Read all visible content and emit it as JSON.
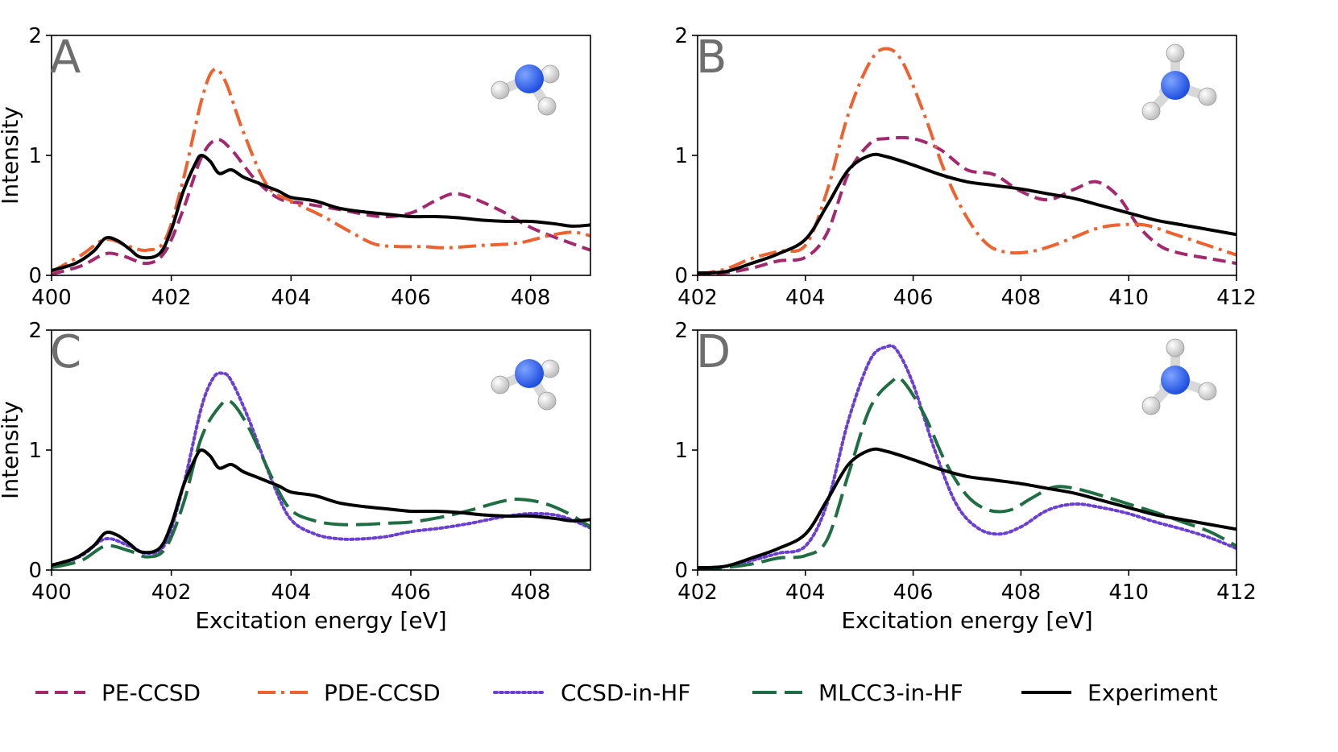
{
  "colors": {
    "PE-CCSD": "#a3286e",
    "PDE-CCSD": "#ee6230",
    "CCSD-in-HF": "#6a3fd1",
    "MLCC3-in-HF": "#1f6e43",
    "Experiment": "#000000",
    "nitrogen": "#1f4fe0",
    "hydrogen": "#f2f2f2"
  },
  "legend": [
    "PE-CCSD",
    "PDE-CCSD",
    "CCSD-in-HF",
    "MLCC3-in-HF",
    "Experiment"
  ],
  "chart_data": [
    {
      "id": "A",
      "type": "line",
      "letter": "A",
      "molecule_icon": "ammonia-molecule-icon",
      "xlim": [
        400,
        409
      ],
      "ylim": [
        0,
        2
      ],
      "xticks": [
        "400",
        "402",
        "404",
        "406",
        "408"
      ],
      "yticks": [
        "0",
        "1",
        "2"
      ],
      "ylabel": "Intensity",
      "xlabel": "",
      "series": [
        {
          "name": "PE-CCSD",
          "x": [
            400,
            400.5,
            400.9,
            401.2,
            401.6,
            401.9,
            402.2,
            402.5,
            402.75,
            403.0,
            403.4,
            403.8,
            404.2,
            404.8,
            405.5,
            406.0,
            406.4,
            406.7,
            407.0,
            407.5,
            408.0,
            408.5,
            409.0
          ],
          "y": [
            0.01,
            0.08,
            0.18,
            0.16,
            0.1,
            0.2,
            0.55,
            0.98,
            1.13,
            1.05,
            0.8,
            0.64,
            0.6,
            0.55,
            0.49,
            0.52,
            0.62,
            0.68,
            0.65,
            0.54,
            0.4,
            0.3,
            0.21
          ]
        },
        {
          "name": "PDE-CCSD",
          "x": [
            400,
            400.5,
            400.9,
            401.3,
            401.6,
            401.9,
            402.2,
            402.5,
            402.7,
            402.9,
            403.2,
            403.6,
            404.0,
            404.5,
            405.0,
            405.4,
            405.8,
            406.2,
            406.6,
            407.2,
            407.8,
            408.3,
            408.7,
            409.0
          ],
          "y": [
            0.03,
            0.17,
            0.3,
            0.24,
            0.21,
            0.3,
            0.8,
            1.45,
            1.71,
            1.62,
            1.2,
            0.75,
            0.62,
            0.5,
            0.36,
            0.26,
            0.24,
            0.24,
            0.23,
            0.25,
            0.27,
            0.33,
            0.36,
            0.33
          ]
        },
        {
          "name": "Experiment",
          "x": [
            400,
            400.4,
            400.7,
            400.9,
            401.1,
            401.3,
            401.5,
            401.8,
            402.0,
            402.2,
            402.4,
            402.5,
            402.65,
            402.8,
            403.0,
            403.2,
            403.4,
            403.6,
            403.8,
            404.0,
            404.4,
            404.8,
            405.2,
            405.6,
            406.0,
            406.4,
            406.8,
            407.2,
            407.6,
            408.0,
            408.4,
            408.7,
            409.0
          ],
          "y": [
            0.04,
            0.1,
            0.2,
            0.31,
            0.29,
            0.22,
            0.15,
            0.18,
            0.38,
            0.7,
            0.93,
            1.0,
            0.95,
            0.85,
            0.88,
            0.82,
            0.78,
            0.74,
            0.7,
            0.65,
            0.62,
            0.56,
            0.53,
            0.51,
            0.49,
            0.49,
            0.48,
            0.46,
            0.45,
            0.45,
            0.43,
            0.41,
            0.42
          ]
        }
      ]
    },
    {
      "id": "B",
      "type": "line",
      "letter": "B",
      "molecule_icon": "ammonium-molecule-icon",
      "xlim": [
        402,
        412
      ],
      "ylim": [
        0,
        2
      ],
      "xticks": [
        "402",
        "404",
        "406",
        "408",
        "410",
        "412"
      ],
      "yticks": [
        "0",
        "1",
        "2"
      ],
      "ylabel": "",
      "xlabel": "",
      "series": [
        {
          "name": "PE-CCSD",
          "x": [
            402,
            402.5,
            403.0,
            403.5,
            404.0,
            404.4,
            404.8,
            405.2,
            405.5,
            406.0,
            406.5,
            407.0,
            407.5,
            408.0,
            408.5,
            409.0,
            409.4,
            409.8,
            410.2,
            410.6,
            411.0,
            411.5,
            412.0
          ],
          "y": [
            0.01,
            0.02,
            0.06,
            0.12,
            0.15,
            0.35,
            0.85,
            1.1,
            1.14,
            1.14,
            1.05,
            0.88,
            0.84,
            0.7,
            0.63,
            0.72,
            0.78,
            0.66,
            0.4,
            0.24,
            0.18,
            0.14,
            0.1
          ]
        },
        {
          "name": "PDE-CCSD",
          "x": [
            402,
            402.5,
            403.0,
            403.5,
            404.0,
            404.4,
            404.8,
            405.2,
            405.5,
            405.8,
            406.2,
            406.6,
            407.0,
            407.4,
            407.8,
            408.2,
            408.6,
            409.0,
            409.4,
            409.8,
            410.3,
            410.8,
            411.4,
            412.0
          ],
          "y": [
            0.01,
            0.05,
            0.14,
            0.2,
            0.25,
            0.7,
            1.35,
            1.78,
            1.89,
            1.78,
            1.35,
            0.85,
            0.48,
            0.25,
            0.19,
            0.2,
            0.25,
            0.32,
            0.39,
            0.42,
            0.42,
            0.35,
            0.26,
            0.17
          ]
        },
        {
          "name": "Experiment",
          "x": [
            402,
            402.5,
            403.0,
            403.5,
            404.0,
            404.4,
            404.8,
            405.2,
            405.5,
            406.0,
            406.5,
            407.0,
            407.5,
            408.0,
            408.5,
            409.0,
            409.5,
            410.0,
            410.5,
            411.0,
            411.5,
            412.0
          ],
          "y": [
            0.02,
            0.03,
            0.1,
            0.18,
            0.3,
            0.58,
            0.88,
            1.0,
            0.99,
            0.92,
            0.84,
            0.78,
            0.75,
            0.72,
            0.68,
            0.64,
            0.58,
            0.52,
            0.46,
            0.42,
            0.38,
            0.34
          ]
        }
      ]
    },
    {
      "id": "C",
      "type": "line",
      "letter": "C",
      "molecule_icon": "ammonia-molecule-icon",
      "xlim": [
        400,
        409
      ],
      "ylim": [
        0,
        2
      ],
      "xticks": [
        "400",
        "402",
        "404",
        "406",
        "408"
      ],
      "yticks": [
        "0",
        "1",
        "2"
      ],
      "ylabel": "Intensity",
      "xlabel": "Excitation energy [eV]",
      "series": [
        {
          "name": "CCSD-in-HF",
          "x": [
            400,
            400.5,
            400.9,
            401.3,
            401.6,
            401.9,
            402.2,
            402.5,
            402.7,
            402.85,
            403.0,
            403.3,
            403.7,
            404.0,
            404.4,
            404.8,
            405.2,
            405.6,
            406.0,
            406.5,
            407.0,
            407.5,
            408.0,
            408.5,
            409.0
          ],
          "y": [
            0.02,
            0.12,
            0.26,
            0.2,
            0.14,
            0.22,
            0.7,
            1.35,
            1.6,
            1.64,
            1.58,
            1.25,
            0.72,
            0.42,
            0.3,
            0.26,
            0.26,
            0.28,
            0.32,
            0.35,
            0.39,
            0.44,
            0.47,
            0.45,
            0.35
          ]
        },
        {
          "name": "MLCC3-in-HF",
          "x": [
            400,
            400.5,
            400.9,
            401.3,
            401.6,
            401.9,
            402.2,
            402.5,
            402.8,
            403.0,
            403.3,
            403.7,
            404.0,
            404.4,
            404.8,
            405.2,
            405.6,
            406.0,
            406.5,
            407.0,
            407.5,
            407.8,
            408.2,
            408.6,
            409.0
          ],
          "y": [
            0.02,
            0.08,
            0.2,
            0.16,
            0.11,
            0.18,
            0.55,
            1.1,
            1.36,
            1.4,
            1.18,
            0.75,
            0.5,
            0.41,
            0.38,
            0.38,
            0.39,
            0.4,
            0.44,
            0.5,
            0.57,
            0.59,
            0.56,
            0.48,
            0.36
          ]
        },
        {
          "name": "Experiment",
          "x": [
            400,
            400.4,
            400.7,
            400.9,
            401.1,
            401.3,
            401.5,
            401.8,
            402.0,
            402.2,
            402.4,
            402.5,
            402.65,
            402.8,
            403.0,
            403.2,
            403.4,
            403.6,
            403.8,
            404.0,
            404.4,
            404.8,
            405.2,
            405.6,
            406.0,
            406.4,
            406.8,
            407.2,
            407.6,
            408.0,
            408.4,
            408.7,
            409.0
          ],
          "y": [
            0.04,
            0.1,
            0.2,
            0.31,
            0.29,
            0.22,
            0.15,
            0.18,
            0.38,
            0.7,
            0.93,
            1.0,
            0.95,
            0.85,
            0.88,
            0.82,
            0.78,
            0.74,
            0.7,
            0.65,
            0.62,
            0.56,
            0.53,
            0.51,
            0.49,
            0.49,
            0.48,
            0.46,
            0.45,
            0.45,
            0.43,
            0.41,
            0.42
          ]
        }
      ]
    },
    {
      "id": "D",
      "type": "line",
      "letter": "D",
      "molecule_icon": "ammonium-molecule-icon",
      "xlim": [
        402,
        412
      ],
      "ylim": [
        0,
        2
      ],
      "xticks": [
        "402",
        "404",
        "406",
        "408",
        "410",
        "412"
      ],
      "yticks": [
        "0",
        "1",
        "2"
      ],
      "ylabel": "",
      "xlabel": "Excitation energy [eV]",
      "series": [
        {
          "name": "CCSD-in-HF",
          "x": [
            402,
            402.5,
            403.0,
            403.5,
            404.0,
            404.4,
            404.8,
            405.2,
            405.5,
            405.7,
            406.0,
            406.4,
            406.8,
            407.2,
            407.6,
            408.0,
            408.5,
            409.0,
            409.5,
            410.0,
            410.5,
            411.0,
            411.5,
            412.0
          ],
          "y": [
            0.01,
            0.03,
            0.08,
            0.14,
            0.2,
            0.55,
            1.25,
            1.75,
            1.86,
            1.83,
            1.55,
            1.0,
            0.55,
            0.35,
            0.3,
            0.36,
            0.5,
            0.55,
            0.52,
            0.47,
            0.4,
            0.34,
            0.27,
            0.18
          ]
        },
        {
          "name": "MLCC3-in-HF",
          "x": [
            402,
            402.5,
            403.0,
            403.5,
            404.0,
            404.4,
            404.8,
            405.2,
            405.6,
            405.8,
            406.2,
            406.6,
            407.0,
            407.4,
            407.8,
            408.2,
            408.6,
            409.0,
            409.5,
            410.0,
            410.5,
            411.0,
            411.5,
            412.0
          ],
          "y": [
            0.01,
            0.02,
            0.05,
            0.1,
            0.12,
            0.25,
            0.8,
            1.35,
            1.57,
            1.58,
            1.3,
            0.9,
            0.62,
            0.5,
            0.5,
            0.6,
            0.69,
            0.68,
            0.62,
            0.55,
            0.48,
            0.4,
            0.32,
            0.2
          ]
        },
        {
          "name": "Experiment",
          "x": [
            402,
            402.5,
            403.0,
            403.5,
            404.0,
            404.4,
            404.8,
            405.2,
            405.5,
            406.0,
            406.5,
            407.0,
            407.5,
            408.0,
            408.5,
            409.0,
            409.5,
            410.0,
            410.5,
            411.0,
            411.5,
            412.0
          ],
          "y": [
            0.02,
            0.03,
            0.1,
            0.18,
            0.3,
            0.58,
            0.88,
            1.0,
            0.99,
            0.92,
            0.84,
            0.78,
            0.75,
            0.72,
            0.68,
            0.64,
            0.58,
            0.52,
            0.46,
            0.42,
            0.38,
            0.34
          ]
        }
      ]
    }
  ]
}
